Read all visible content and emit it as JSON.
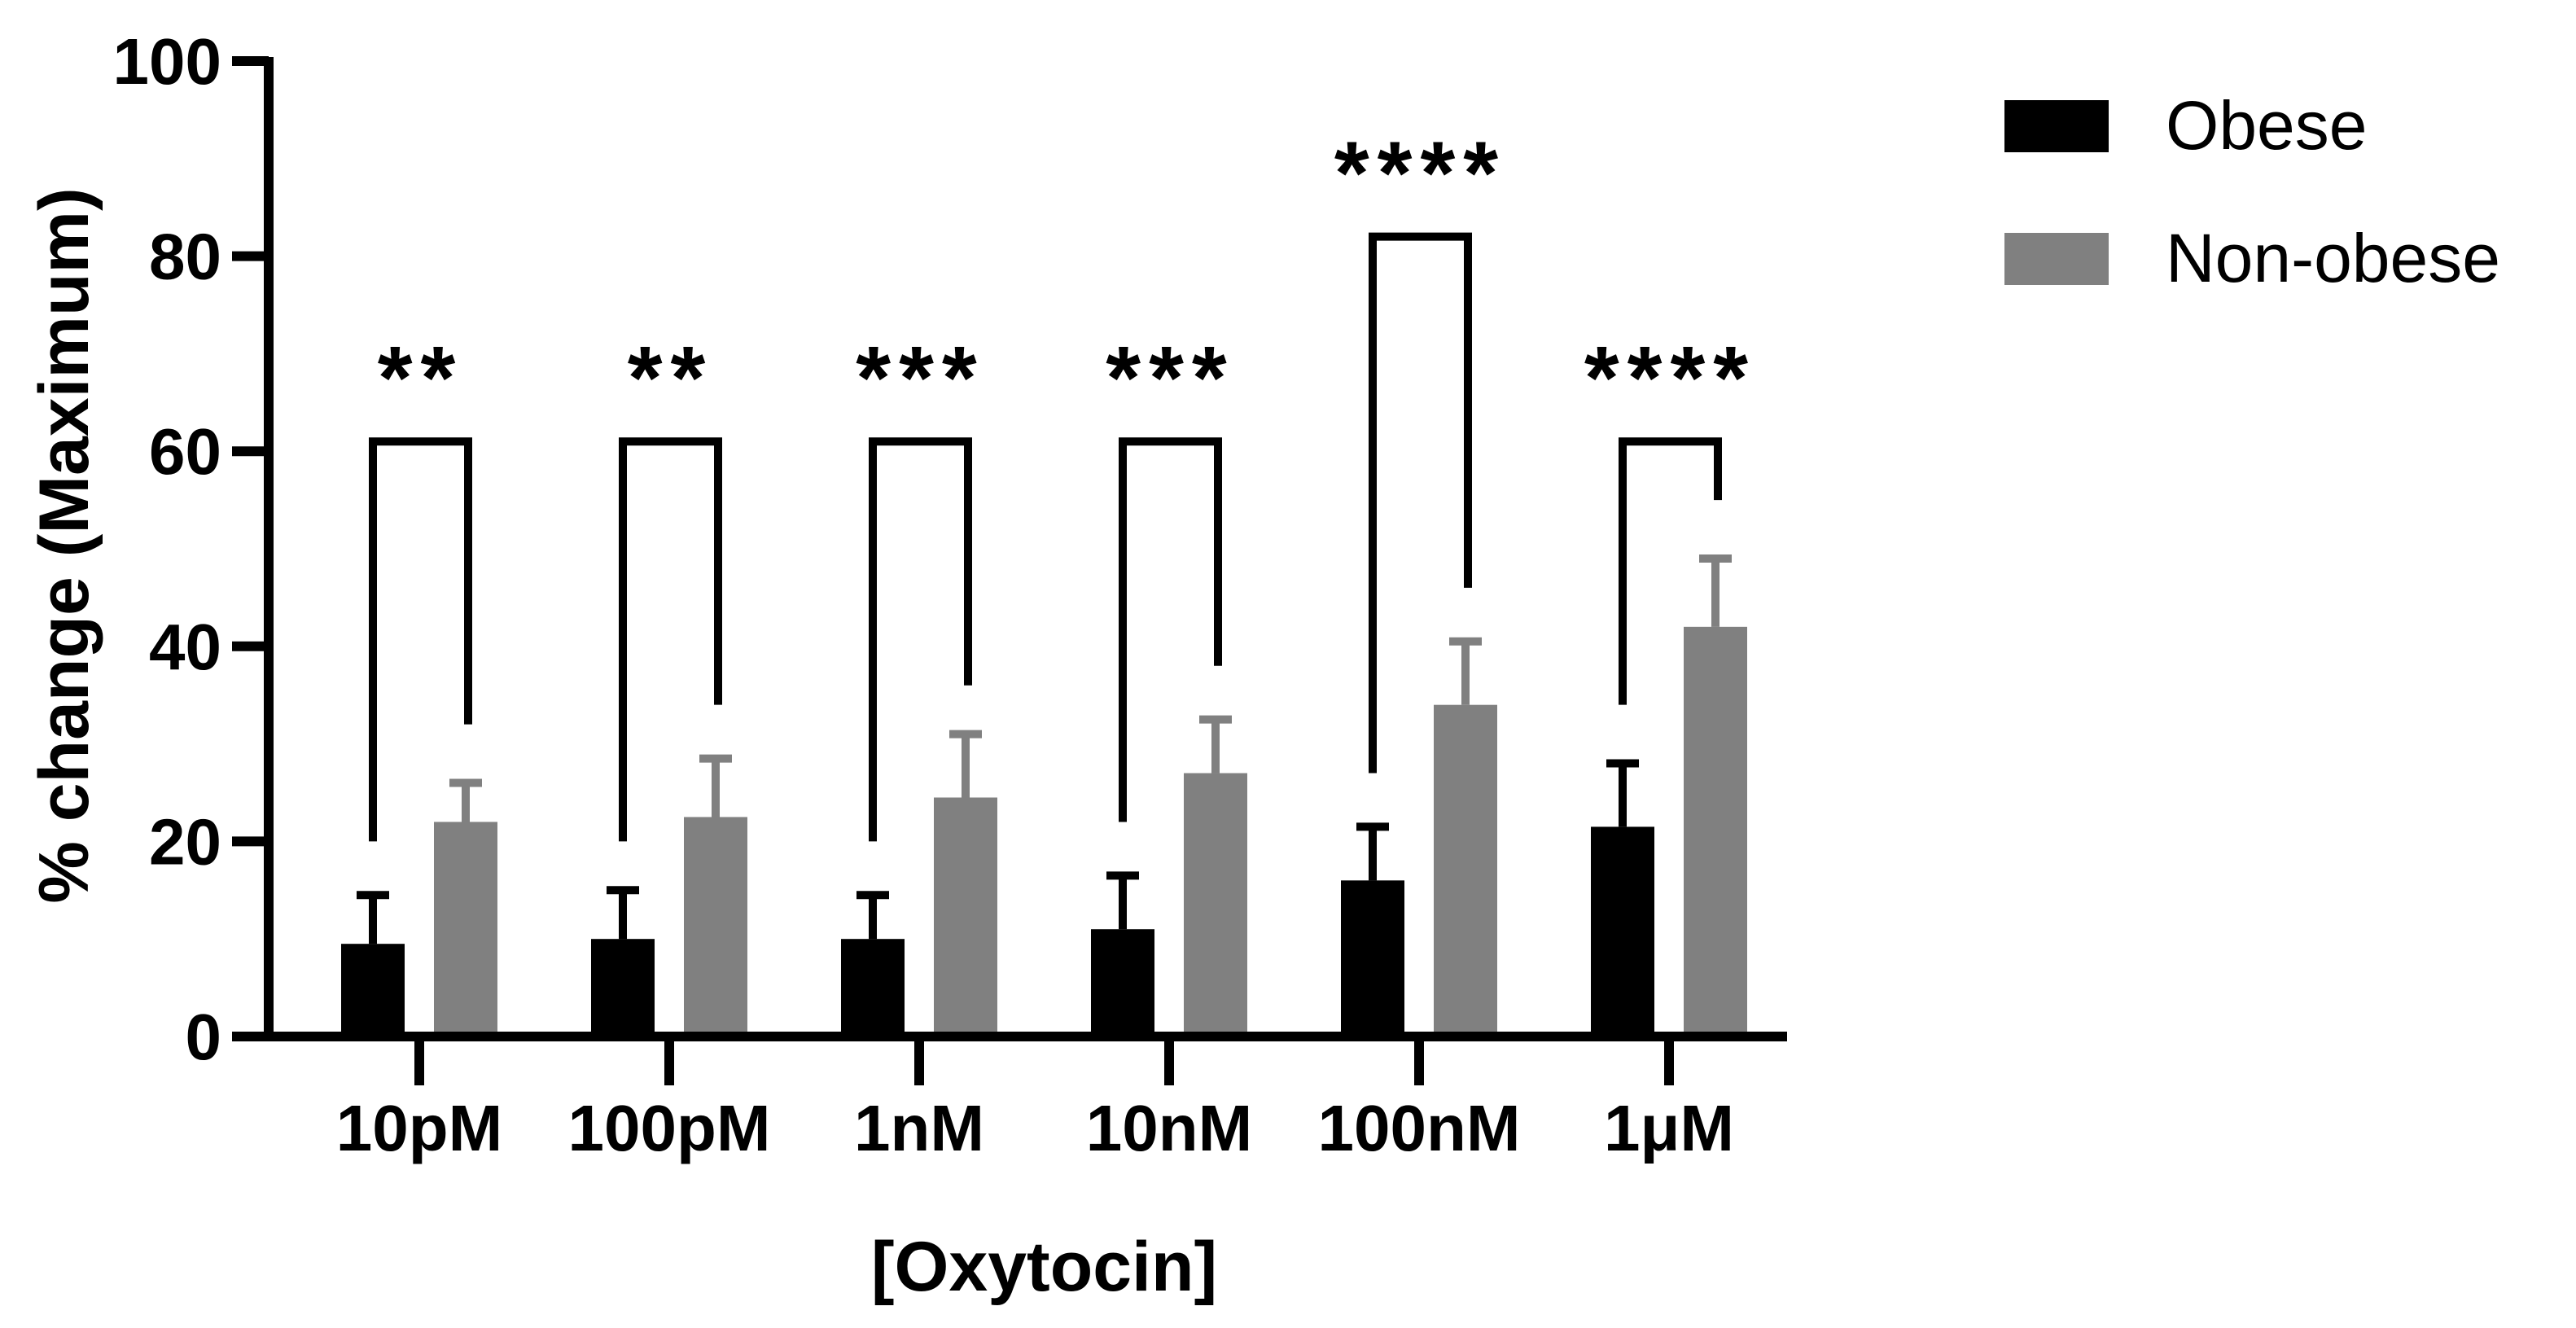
{
  "chart_data": {
    "type": "bar",
    "title": "",
    "xlabel": "[Oxytocin]",
    "ylabel": "% change (Maximum)",
    "ylim": [
      0,
      100
    ],
    "yticks": [
      0,
      20,
      40,
      60,
      80,
      100
    ],
    "categories": [
      "10pM",
      "100pM",
      "1nM",
      "10nM",
      "100nM",
      "1μM"
    ],
    "series": [
      {
        "name": "Obese",
        "color": "#000000",
        "values": [
          9.5,
          10,
          10,
          11,
          16,
          21.5
        ],
        "errors": [
          5,
          5,
          4.5,
          5.5,
          5.5,
          6.5
        ]
      },
      {
        "name": "Non-obese",
        "color": "#808080",
        "values": [
          22,
          22.5,
          24.5,
          27,
          34,
          42
        ],
        "errors": [
          4,
          6,
          6.5,
          5.5,
          6.5,
          7
        ]
      }
    ],
    "significance": [
      {
        "category": "10pM",
        "label": "**",
        "bracket_top": 61,
        "left_end": 20,
        "right_end": 32
      },
      {
        "category": "100pM",
        "label": "**",
        "bracket_top": 61,
        "left_end": 20,
        "right_end": 34
      },
      {
        "category": "1nM",
        "label": "***",
        "bracket_top": 61,
        "left_end": 20,
        "right_end": 36
      },
      {
        "category": "10nM",
        "label": "***",
        "bracket_top": 61,
        "left_end": 22,
        "right_end": 38
      },
      {
        "category": "100nM",
        "label": "****",
        "bracket_top": 82,
        "left_end": 27,
        "right_end": 46
      },
      {
        "category": "1μM",
        "label": "****",
        "bracket_top": 61,
        "left_end": 34,
        "right_end": 55
      }
    ],
    "legend_position": "top-right",
    "grid": false
  }
}
